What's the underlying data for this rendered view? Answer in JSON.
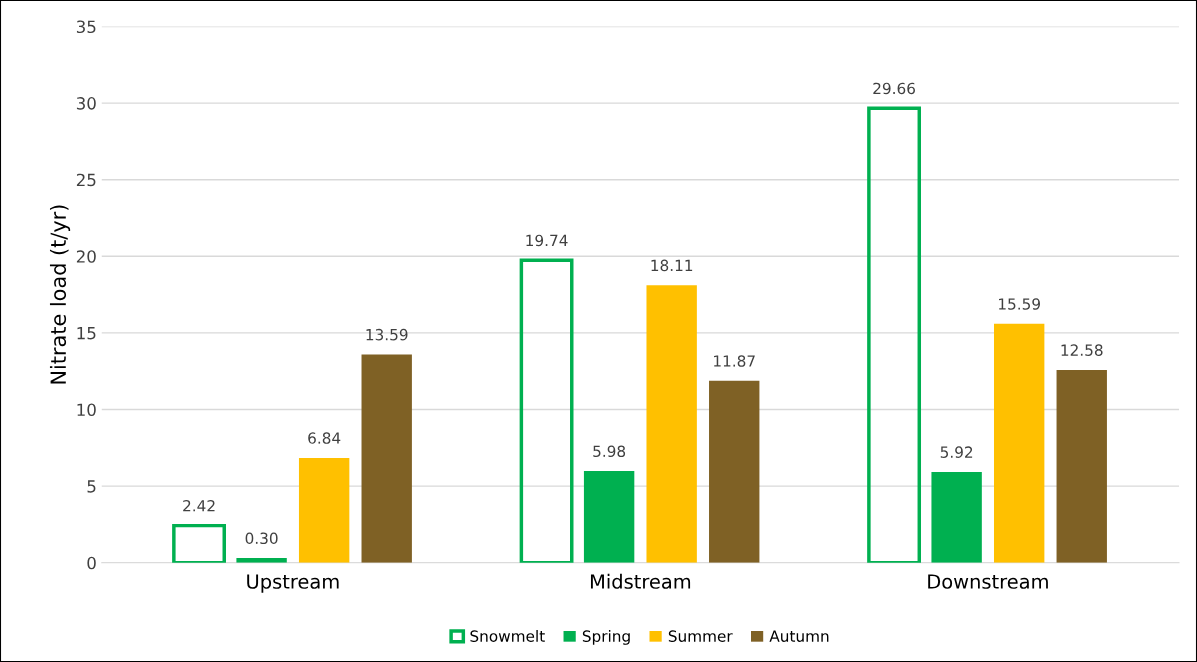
{
  "chart_data": {
    "type": "bar",
    "ylabel": "Nitrate load (t/yr)",
    "categories": [
      "Upstream",
      "Midstream",
      "Downstream"
    ],
    "series": [
      {
        "name": "Snowmelt",
        "color": "#00b050",
        "line_style": "solid",
        "values": [
          2.42,
          19.74,
          29.66
        ],
        "value_labels": [
          "2.42",
          "19.74",
          "29.66"
        ]
      },
      {
        "name": "Spring",
        "color": "#00b050",
        "values": [
          0.3,
          5.98,
          5.92
        ],
        "value_labels": [
          "0.30",
          "5.98",
          "5.92"
        ]
      },
      {
        "name": "Summer",
        "color": "#ffc000",
        "values": [
          6.84,
          18.11,
          15.59
        ],
        "value_labels": [
          "6.84",
          "18.11",
          "15.59"
        ]
      },
      {
        "name": "Autumn",
        "color": "#7f6125",
        "values": [
          13.59,
          11.87,
          12.58
        ],
        "value_labels": [
          "13.59",
          "11.87",
          "12.58"
        ]
      }
    ],
    "ylim": [
      0,
      35
    ],
    "yticks": [
      0,
      5,
      10,
      15,
      20,
      25,
      30,
      35
    ],
    "grid": "y",
    "legend": "bottom"
  }
}
